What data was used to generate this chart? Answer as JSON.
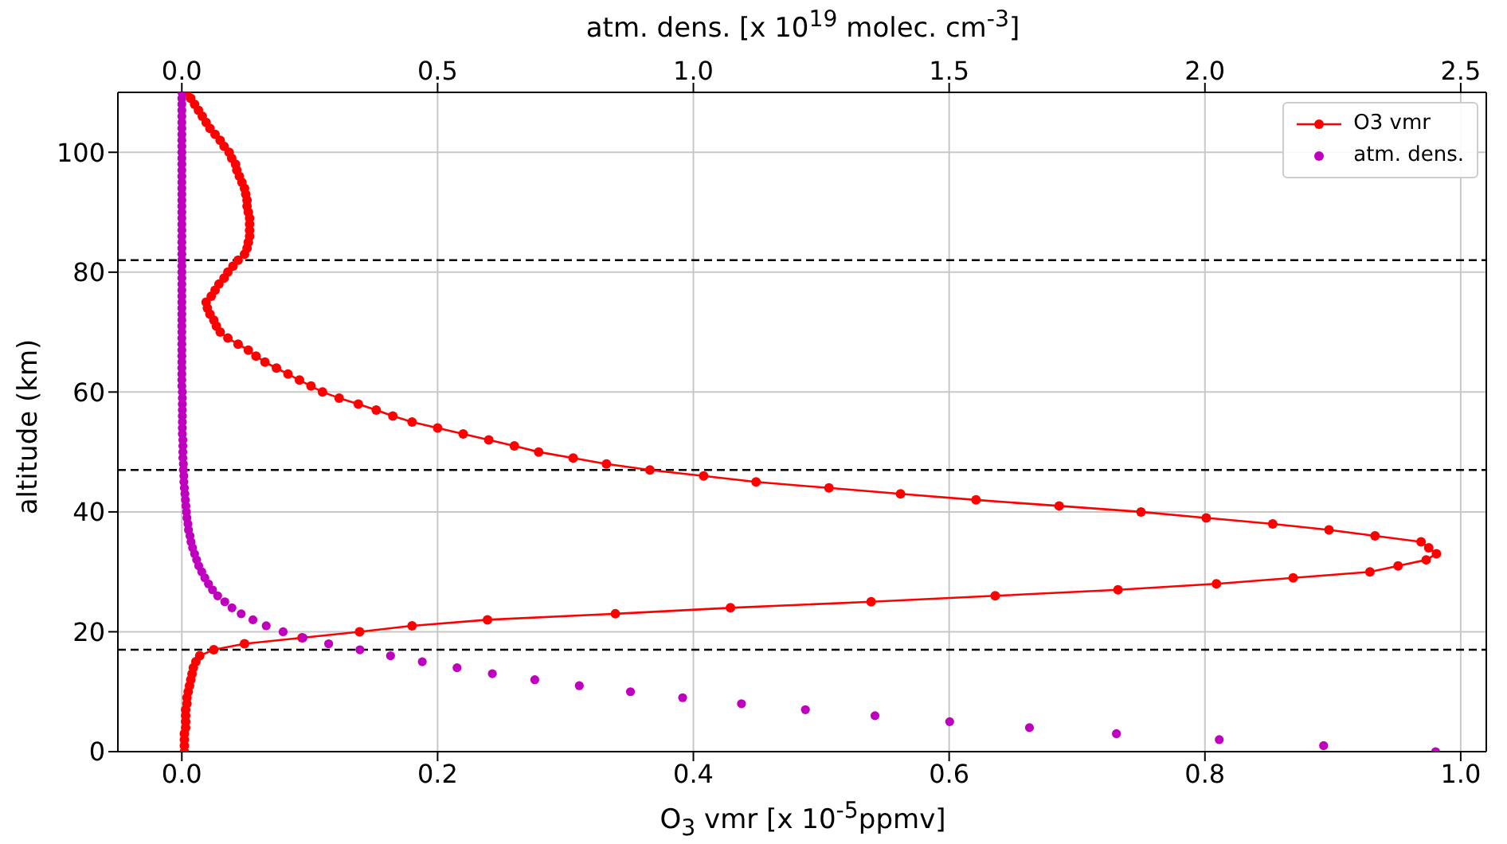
{
  "chart_data": {
    "type": "line",
    "xlabel": "O$_{3}$ vmr [x 10$^{-5}$ppmv]",
    "x2label": "atm. dens. [x 10$^{19}$ molec. cm$^{-3}$]",
    "ylabel": "altitude (km)",
    "xlim": [
      -0.05,
      1.02
    ],
    "xticks": [
      {
        "value": 0,
        "label": "0.0"
      },
      {
        "value": 0.2,
        "label": "0.2"
      },
      {
        "value": 0.4,
        "label": "0.4"
      },
      {
        "value": 0.6,
        "label": "0.6"
      },
      {
        "value": 0.8,
        "label": "0.8"
      },
      {
        "value": 1,
        "label": "1.0"
      }
    ],
    "x2lim": [
      -0.125,
      2.55
    ],
    "x2ticks": [
      {
        "value": 0,
        "label": "0.0"
      },
      {
        "value": 0.5,
        "label": "0.5"
      },
      {
        "value": 1,
        "label": "1.0"
      },
      {
        "value": 1.5,
        "label": "1.5"
      },
      {
        "value": 2,
        "label": "2.0"
      },
      {
        "value": 2.5,
        "label": "2.5"
      }
    ],
    "ylim": [
      0,
      110
    ],
    "yticks": [
      0,
      20,
      40,
      60,
      80,
      100
    ],
    "grid": true,
    "legend": "top right",
    "marker": "circle",
    "ref_lines": [
      {
        "axis": "y",
        "value": 17,
        "color": "#000000",
        "line_style": "dashed"
      },
      {
        "axis": "y",
        "value": 47,
        "color": "#000000",
        "line_style": "dashed"
      },
      {
        "axis": "y",
        "value": 82,
        "color": "#000000",
        "line_style": "dashed"
      }
    ],
    "series": [
      {
        "name": "O3 vmr",
        "color": "#ff0000",
        "x": [
          0.002,
          0.002,
          0.002,
          0.002,
          0.003,
          0.003,
          0.003,
          0.003,
          0.004,
          0.004,
          0.005,
          0.006,
          0.007,
          0.008,
          0.009,
          0.011,
          0.014,
          0.025,
          0.049,
          0.094,
          0.139,
          0.18,
          0.239,
          0.339,
          0.429,
          0.539,
          0.636,
          0.732,
          0.809,
          0.869,
          0.929,
          0.951,
          0.973,
          0.981,
          0.975,
          0.969,
          0.933,
          0.897,
          0.853,
          0.801,
          0.75,
          0.686,
          0.621,
          0.562,
          0.506,
          0.449,
          0.408,
          0.366,
          0.332,
          0.306,
          0.279,
          0.26,
          0.24,
          0.22,
          0.2,
          0.18,
          0.165,
          0.152,
          0.138,
          0.123,
          0.11,
          0.101,
          0.092,
          0.083,
          0.074,
          0.065,
          0.058,
          0.052,
          0.044,
          0.036,
          0.03,
          0.027,
          0.025,
          0.022,
          0.02,
          0.019,
          0.023,
          0.026,
          0.029,
          0.033,
          0.036,
          0.04,
          0.044,
          0.049,
          0.051,
          0.052,
          0.053,
          0.053,
          0.053,
          0.053,
          0.052,
          0.051,
          0.051,
          0.05,
          0.049,
          0.047,
          0.045,
          0.043,
          0.042,
          0.039,
          0.037,
          0.033,
          0.03,
          0.026,
          0.022,
          0.019,
          0.016,
          0.013,
          0.01,
          0.007,
          0.004
        ],
        "values": [
          0,
          1,
          2,
          3,
          4,
          5,
          6,
          7,
          8,
          9,
          10,
          11,
          12,
          13,
          14,
          15,
          16,
          17,
          18,
          19,
          20,
          21,
          22,
          23,
          24,
          25,
          26,
          27,
          28,
          29,
          30,
          31,
          32,
          33,
          34,
          35,
          36,
          37,
          38,
          39,
          40,
          41,
          42,
          43,
          44,
          45,
          46,
          47,
          48,
          49,
          50,
          51,
          52,
          53,
          54,
          55,
          56,
          57,
          58,
          59,
          60,
          61,
          62,
          63,
          64,
          65,
          66,
          67,
          68,
          69,
          70,
          71,
          72,
          73,
          74,
          75,
          76,
          77,
          78,
          79,
          80,
          81,
          82,
          83,
          84,
          85,
          86,
          87,
          88,
          89,
          90,
          91,
          92,
          93,
          94,
          95,
          96,
          97,
          98,
          99,
          100,
          101,
          102,
          103,
          104,
          105,
          106,
          107,
          108,
          109,
          110
        ]
      },
      {
        "name": "atm. dens.",
        "type": "scatter",
        "axis": "x2",
        "color": "#bf00bf",
        "x": [
          2.451,
          2.232,
          2.028,
          1.827,
          1.657,
          1.501,
          1.355,
          1.219,
          1.094,
          0.979,
          0.877,
          0.777,
          0.69,
          0.607,
          0.538,
          0.47,
          0.408,
          0.348,
          0.287,
          0.237,
          0.198,
          0.165,
          0.139,
          0.116,
          0.098,
          0.084,
          0.07,
          0.06,
          0.052,
          0.045,
          0.039,
          0.033,
          0.029,
          0.025,
          0.021,
          0.018,
          0.016,
          0.013,
          0.012,
          0.01,
          0.009,
          0.008,
          0.007,
          0.006,
          0.005,
          0.004,
          0.004,
          0.003,
          0.003,
          0.002,
          0.002,
          0.002,
          0.002,
          0.001,
          0.001,
          0.001,
          0.001,
          0.001,
          0.001,
          0.001,
          0.001,
          0,
          0,
          0,
          0,
          0,
          0,
          0,
          0,
          0,
          0,
          0,
          0,
          0,
          0,
          0,
          0,
          0,
          0,
          0,
          0,
          0,
          0,
          0,
          0,
          0,
          0,
          0,
          0,
          0,
          0,
          0,
          0,
          0,
          0,
          0,
          0,
          0,
          0,
          0,
          0,
          0,
          0,
          0,
          0,
          0,
          0,
          0,
          0,
          0,
          0
        ],
        "values": [
          0,
          1,
          2,
          3,
          4,
          5,
          6,
          7,
          8,
          9,
          10,
          11,
          12,
          13,
          14,
          15,
          16,
          17,
          18,
          19,
          20,
          21,
          22,
          23,
          24,
          25,
          26,
          27,
          28,
          29,
          30,
          31,
          32,
          33,
          34,
          35,
          36,
          37,
          38,
          39,
          40,
          41,
          42,
          43,
          44,
          45,
          46,
          47,
          48,
          49,
          50,
          51,
          52,
          53,
          54,
          55,
          56,
          57,
          58,
          59,
          60,
          61,
          62,
          63,
          64,
          65,
          66,
          67,
          68,
          69,
          70,
          71,
          72,
          73,
          74,
          75,
          76,
          77,
          78,
          79,
          80,
          81,
          82,
          83,
          84,
          85,
          86,
          87,
          88,
          89,
          90,
          91,
          92,
          93,
          94,
          95,
          96,
          97,
          98,
          99,
          100,
          101,
          102,
          103,
          104,
          105,
          106,
          107,
          108,
          109,
          110
        ]
      }
    ]
  }
}
